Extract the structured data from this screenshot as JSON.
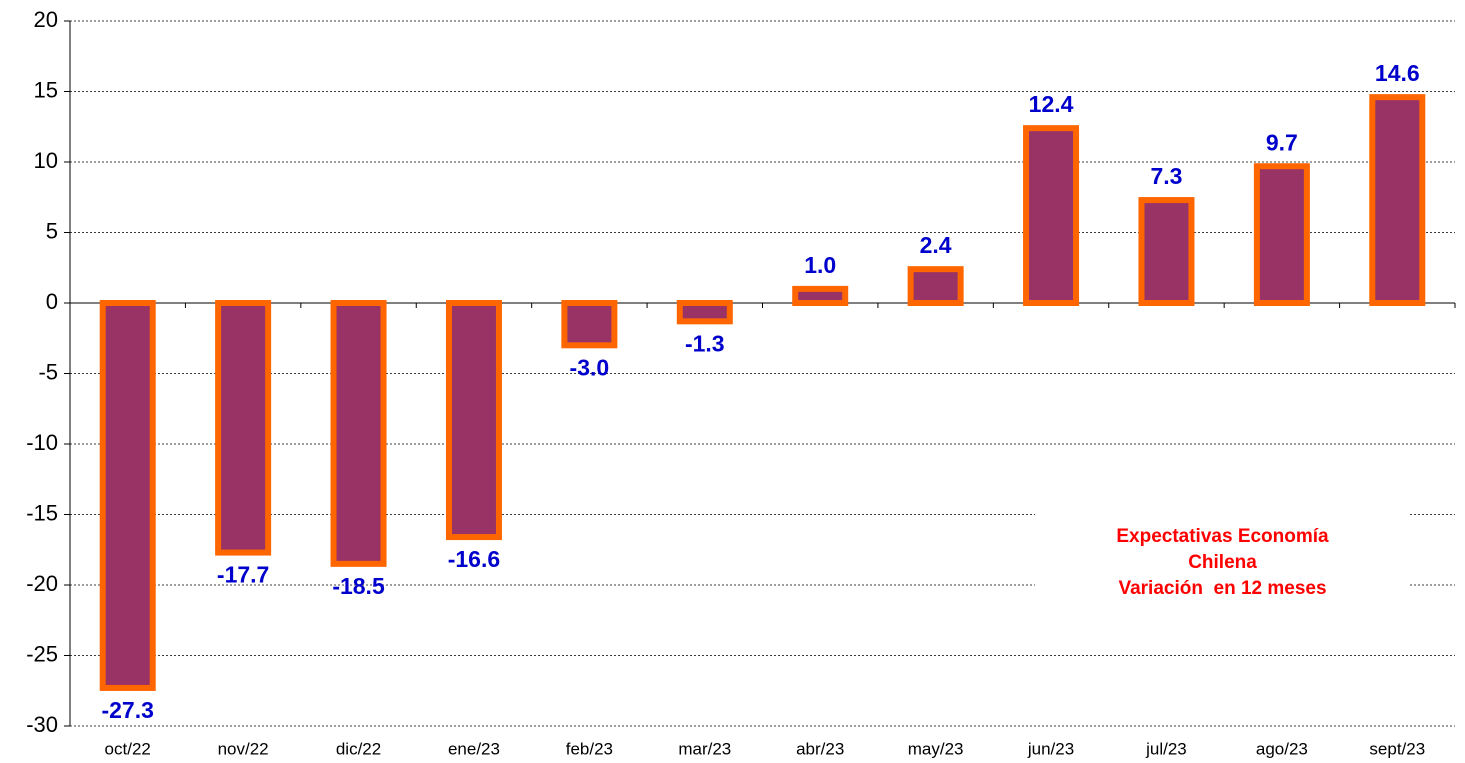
{
  "chart_data": {
    "type": "bar",
    "categories": [
      "oct/22",
      "nov/22",
      "dic/22",
      "ene/23",
      "feb/23",
      "mar/23",
      "abr/23",
      "may/23",
      "jun/23",
      "jul/23",
      "ago/23",
      "sept/23"
    ],
    "values": [
      -27.3,
      -17.7,
      -18.5,
      -16.6,
      -3.0,
      -1.3,
      1.0,
      2.4,
      12.4,
      7.3,
      9.7,
      14.6
    ],
    "value_labels": [
      "-27.3",
      "-17.7",
      "-18.5",
      "-16.6",
      "-3.0",
      "-1.3",
      "1.0",
      "2.4",
      "12.4",
      "7.3",
      "9.7",
      "14.6"
    ],
    "color": "#993366",
    "edge_color": "#ff6600",
    "label_color": "#0000cc",
    "ylim": [
      -30,
      20
    ],
    "yticks": [
      -30,
      -25,
      -20,
      -15,
      -10,
      -5,
      0,
      5,
      10,
      15,
      20
    ],
    "grid": true,
    "annotation": [
      "Expectativas Economía",
      "Chilena",
      "Variación  en 12 meses"
    ],
    "annotation_color": "#ff0000"
  }
}
